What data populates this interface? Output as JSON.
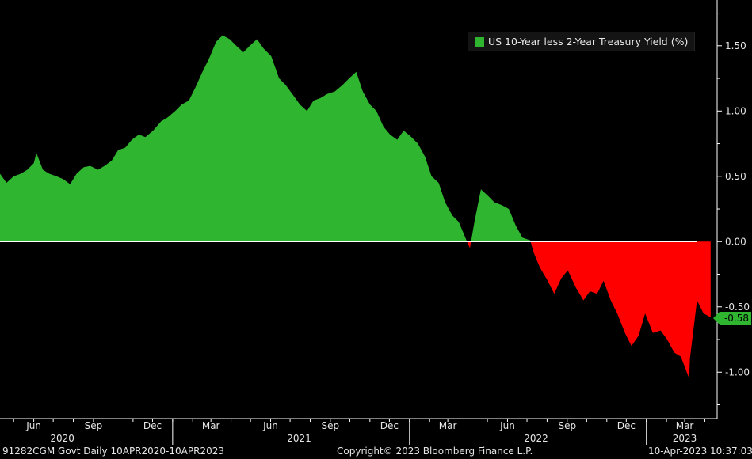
{
  "chart_data": {
    "type": "area",
    "series": [
      {
        "name": "US 10-Year less 2-Year Treasury Yield (%)",
        "positive_color": "#2fb52f",
        "negative_color": "#ff0000",
        "x": [
          "2020-04-10",
          "2020-04-20",
          "2020-05-01",
          "2020-05-12",
          "2020-05-22",
          "2020-06-01",
          "2020-06-05",
          "2020-06-15",
          "2020-06-25",
          "2020-07-06",
          "2020-07-16",
          "2020-07-27",
          "2020-08-06",
          "2020-08-17",
          "2020-08-27",
          "2020-09-08",
          "2020-09-18",
          "2020-09-29",
          "2020-10-09",
          "2020-10-20",
          "2020-10-30",
          "2020-11-10",
          "2020-11-20",
          "2020-12-02",
          "2020-12-14",
          "2020-12-24",
          "2021-01-05",
          "2021-01-15",
          "2021-01-26",
          "2021-02-05",
          "2021-02-16",
          "2021-02-26",
          "2021-03-09",
          "2021-03-19",
          "2021-03-30",
          "2021-04-09",
          "2021-04-20",
          "2021-04-30",
          "2021-05-11",
          "2021-05-21",
          "2021-06-02",
          "2021-06-14",
          "2021-06-24",
          "2021-07-06",
          "2021-07-16",
          "2021-07-27",
          "2021-08-06",
          "2021-08-17",
          "2021-08-27",
          "2021-09-08",
          "2021-09-20",
          "2021-09-30",
          "2021-10-11",
          "2021-10-21",
          "2021-11-01",
          "2021-11-11",
          "2021-11-22",
          "2021-12-02",
          "2021-12-13",
          "2021-12-23",
          "2022-01-04",
          "2022-01-14",
          "2022-01-25",
          "2022-02-04",
          "2022-02-15",
          "2022-02-25",
          "2022-03-08",
          "2022-03-18",
          "2022-03-29",
          "2022-04-04",
          "2022-04-11",
          "2022-04-21",
          "2022-05-02",
          "2022-05-12",
          "2022-05-23",
          "2022-06-03",
          "2022-06-14",
          "2022-06-24",
          "2022-07-06",
          "2022-07-11",
          "2022-07-21",
          "2022-08-02",
          "2022-08-12",
          "2022-08-23",
          "2022-09-02",
          "2022-09-14",
          "2022-09-26",
          "2022-10-06",
          "2022-10-17",
          "2022-10-27",
          "2022-11-07",
          "2022-11-17",
          "2022-11-29",
          "2022-12-09",
          "2022-12-20",
          "2022-12-30",
          "2023-01-11",
          "2023-01-23",
          "2023-02-02",
          "2023-02-13",
          "2023-02-23",
          "2023-03-08",
          "2023-03-09",
          "2023-03-20",
          "2023-03-30",
          "2023-04-10"
        ],
        "y": [
          0.52,
          0.45,
          0.5,
          0.52,
          0.55,
          0.6,
          0.68,
          0.55,
          0.52,
          0.5,
          0.48,
          0.44,
          0.52,
          0.57,
          0.58,
          0.55,
          0.58,
          0.62,
          0.7,
          0.72,
          0.78,
          0.82,
          0.8,
          0.85,
          0.92,
          0.95,
          1.0,
          1.05,
          1.08,
          1.18,
          1.3,
          1.4,
          1.53,
          1.58,
          1.55,
          1.5,
          1.45,
          1.5,
          1.55,
          1.48,
          1.42,
          1.25,
          1.2,
          1.12,
          1.05,
          1.0,
          1.08,
          1.1,
          1.13,
          1.15,
          1.2,
          1.25,
          1.3,
          1.15,
          1.05,
          1.0,
          0.88,
          0.82,
          0.78,
          0.85,
          0.8,
          0.75,
          0.65,
          0.5,
          0.45,
          0.3,
          0.2,
          0.15,
          0.02,
          -0.05,
          0.15,
          0.4,
          0.35,
          0.3,
          0.28,
          0.25,
          0.12,
          0.03,
          0.01,
          -0.08,
          -0.2,
          -0.3,
          -0.4,
          -0.28,
          -0.22,
          -0.35,
          -0.45,
          -0.38,
          -0.4,
          -0.3,
          -0.45,
          -0.55,
          -0.7,
          -0.8,
          -0.72,
          -0.55,
          -0.7,
          -0.68,
          -0.75,
          -0.85,
          -0.88,
          -1.05,
          -0.9,
          -0.45,
          -0.55,
          -0.58
        ]
      }
    ],
    "ylim": [
      -1.35,
      1.82
    ],
    "yticks": [
      1.5,
      1.0,
      0.5,
      0.0,
      -0.5,
      -1.0
    ],
    "ytick_labels": [
      "1.50",
      "1.00",
      "0.50",
      "0.00",
      "-0.50",
      "-1.00"
    ],
    "xlim": [
      "2020-04-10",
      "2023-04-20"
    ],
    "xticks": [
      {
        "date": "2020-06-01",
        "label": "Jun"
      },
      {
        "date": "2020-09-01",
        "label": "Sep"
      },
      {
        "date": "2020-12-01",
        "label": "Dec"
      },
      {
        "date": "2021-03-01",
        "label": "Mar"
      },
      {
        "date": "2021-06-01",
        "label": "Jun"
      },
      {
        "date": "2021-09-01",
        "label": "Sep"
      },
      {
        "date": "2021-12-01",
        "label": "Dec"
      },
      {
        "date": "2022-03-01",
        "label": "Mar"
      },
      {
        "date": "2022-06-01",
        "label": "Jun"
      },
      {
        "date": "2022-09-01",
        "label": "Sep"
      },
      {
        "date": "2022-12-01",
        "label": "Dec"
      },
      {
        "date": "2023-03-01",
        "label": "Mar"
      }
    ],
    "year_labels": [
      {
        "date": "2020-07-15",
        "label": "2020"
      },
      {
        "date": "2021-07-15",
        "label": "2021"
      },
      {
        "date": "2022-07-15",
        "label": "2022"
      },
      {
        "date": "2023-03-01",
        "label": "2023"
      }
    ],
    "year_boundaries": [
      "2021-01-01",
      "2022-01-01",
      "2023-01-01"
    ],
    "last_value": "-0.58",
    "legend_position": "top-right",
    "grid": false,
    "title": "",
    "xlabel": "",
    "ylabel": ""
  },
  "legend": {
    "label": "US 10-Year less 2-Year Treasury Yield (%)",
    "color": "#2fb52f"
  },
  "footer": {
    "left": "91282CGM Govt  Daily 10APR2020-10APR2023",
    "center": "Copyright© 2023 Bloomberg Finance L.P.",
    "right": "10-Apr-2023 10:37:03"
  }
}
